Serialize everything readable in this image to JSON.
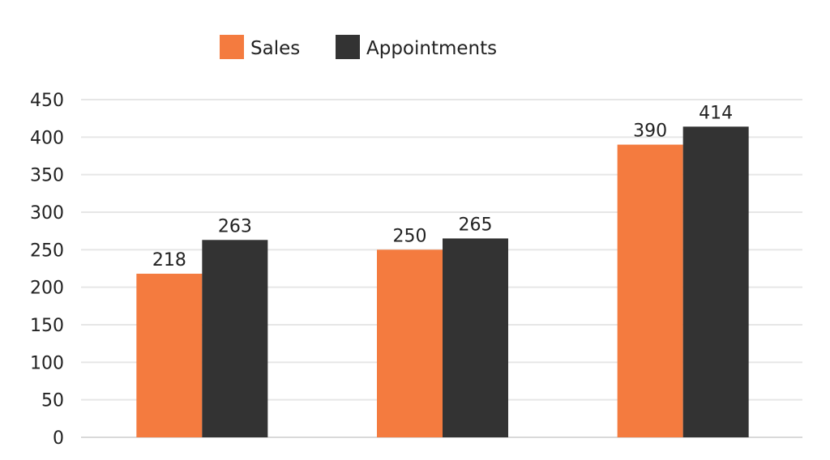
{
  "chart_data": {
    "type": "bar",
    "title": "",
    "xlabel": "",
    "ylabel": "",
    "categories": [
      "",
      "",
      ""
    ],
    "series": [
      {
        "name": "Sales",
        "color": "#F47B3F",
        "values": [
          218,
          250,
          390
        ]
      },
      {
        "name": "Appointments",
        "color": "#333333",
        "values": [
          263,
          265,
          414
        ]
      }
    ],
    "ylim": [
      0,
      450
    ],
    "yticks": [
      0,
      50,
      100,
      150,
      200,
      250,
      300,
      350,
      400,
      450
    ],
    "grid": true,
    "legend": "top-center",
    "data_labels": true
  }
}
